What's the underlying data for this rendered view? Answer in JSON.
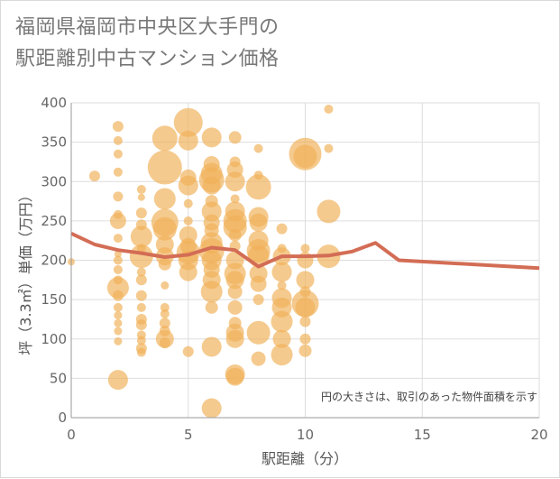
{
  "chart_data": {
    "type": "scatter",
    "title_line1": "福岡県福岡市中央区大手門の",
    "title_line2": "駅距離別中古マンション価格",
    "xlabel": "駅距離（分）",
    "ylabel": "坪（3.3㎡）単価（万円）",
    "note": "円の大きさは、取引のあった物件面積を示す",
    "xlim": [
      0,
      20
    ],
    "ylim": [
      0,
      400
    ],
    "xticks": [
      "0",
      "5",
      "10",
      "15",
      "20"
    ],
    "yticks": [
      "0",
      "50",
      "100",
      "150",
      "200",
      "250",
      "300",
      "350",
      "400"
    ],
    "grid": true,
    "colors": {
      "bubble": "#f0b158",
      "line": "#d36d55",
      "grid": "#dddddd",
      "axis": "#999999"
    },
    "points": [
      {
        "x": 0,
        "y": 198,
        "s": 8
      },
      {
        "x": 1,
        "y": 307,
        "s": 12
      },
      {
        "x": 2,
        "y": 370,
        "s": 12
      },
      {
        "x": 2,
        "y": 352,
        "s": 10
      },
      {
        "x": 2,
        "y": 335,
        "s": 10
      },
      {
        "x": 2,
        "y": 312,
        "s": 10
      },
      {
        "x": 2,
        "y": 281,
        "s": 11
      },
      {
        "x": 2,
        "y": 258,
        "s": 10
      },
      {
        "x": 2,
        "y": 250,
        "s": 18
      },
      {
        "x": 2,
        "y": 228,
        "s": 10
      },
      {
        "x": 2,
        "y": 208,
        "s": 8
      },
      {
        "x": 2,
        "y": 200,
        "s": 10
      },
      {
        "x": 2,
        "y": 188,
        "s": 10
      },
      {
        "x": 2,
        "y": 175,
        "s": 10
      },
      {
        "x": 2,
        "y": 165,
        "s": 24
      },
      {
        "x": 2,
        "y": 155,
        "s": 12
      },
      {
        "x": 2,
        "y": 140,
        "s": 10
      },
      {
        "x": 2,
        "y": 130,
        "s": 9
      },
      {
        "x": 2,
        "y": 120,
        "s": 9
      },
      {
        "x": 2,
        "y": 110,
        "s": 9
      },
      {
        "x": 2,
        "y": 97,
        "s": 9
      },
      {
        "x": 2,
        "y": 48,
        "s": 22
      },
      {
        "x": 3,
        "y": 290,
        "s": 10
      },
      {
        "x": 3,
        "y": 280,
        "s": 8
      },
      {
        "x": 3,
        "y": 260,
        "s": 12
      },
      {
        "x": 3,
        "y": 245,
        "s": 12
      },
      {
        "x": 3,
        "y": 230,
        "s": 24
      },
      {
        "x": 3,
        "y": 215,
        "s": 10
      },
      {
        "x": 3,
        "y": 205,
        "s": 26
      },
      {
        "x": 3,
        "y": 185,
        "s": 10
      },
      {
        "x": 3,
        "y": 175,
        "s": 12
      },
      {
        "x": 3,
        "y": 155,
        "s": 12
      },
      {
        "x": 3,
        "y": 140,
        "s": 10
      },
      {
        "x": 3,
        "y": 125,
        "s": 12
      },
      {
        "x": 3,
        "y": 118,
        "s": 12
      },
      {
        "x": 3,
        "y": 105,
        "s": 10
      },
      {
        "x": 3,
        "y": 98,
        "s": 10
      },
      {
        "x": 3,
        "y": 88,
        "s": 12
      },
      {
        "x": 3,
        "y": 83,
        "s": 10
      },
      {
        "x": 4,
        "y": 355,
        "s": 28
      },
      {
        "x": 4,
        "y": 318,
        "s": 38
      },
      {
        "x": 4,
        "y": 278,
        "s": 24
      },
      {
        "x": 4,
        "y": 248,
        "s": 30
      },
      {
        "x": 4,
        "y": 240,
        "s": 26
      },
      {
        "x": 4,
        "y": 220,
        "s": 20
      },
      {
        "x": 4,
        "y": 205,
        "s": 20
      },
      {
        "x": 4,
        "y": 195,
        "s": 14
      },
      {
        "x": 4,
        "y": 168,
        "s": 9
      },
      {
        "x": 4,
        "y": 140,
        "s": 10
      },
      {
        "x": 4,
        "y": 132,
        "s": 10
      },
      {
        "x": 4,
        "y": 120,
        "s": 12
      },
      {
        "x": 4,
        "y": 110,
        "s": 12
      },
      {
        "x": 4,
        "y": 100,
        "s": 20
      },
      {
        "x": 4,
        "y": 95,
        "s": 12
      },
      {
        "x": 5,
        "y": 375,
        "s": 32
      },
      {
        "x": 5,
        "y": 352,
        "s": 22
      },
      {
        "x": 5,
        "y": 305,
        "s": 18
      },
      {
        "x": 5,
        "y": 295,
        "s": 22
      },
      {
        "x": 5,
        "y": 272,
        "s": 10
      },
      {
        "x": 5,
        "y": 250,
        "s": 10
      },
      {
        "x": 5,
        "y": 232,
        "s": 20
      },
      {
        "x": 5,
        "y": 218,
        "s": 18
      },
      {
        "x": 5,
        "y": 210,
        "s": 26
      },
      {
        "x": 5,
        "y": 200,
        "s": 22
      },
      {
        "x": 5,
        "y": 185,
        "s": 20
      },
      {
        "x": 5,
        "y": 84,
        "s": 12
      },
      {
        "x": 6,
        "y": 356,
        "s": 22
      },
      {
        "x": 6,
        "y": 322,
        "s": 18
      },
      {
        "x": 6,
        "y": 310,
        "s": 24
      },
      {
        "x": 6,
        "y": 302,
        "s": 28
      },
      {
        "x": 6,
        "y": 295,
        "s": 20
      },
      {
        "x": 6,
        "y": 275,
        "s": 14
      },
      {
        "x": 6,
        "y": 262,
        "s": 22
      },
      {
        "x": 6,
        "y": 248,
        "s": 18
      },
      {
        "x": 6,
        "y": 238,
        "s": 16
      },
      {
        "x": 6,
        "y": 222,
        "s": 24
      },
      {
        "x": 6,
        "y": 212,
        "s": 28
      },
      {
        "x": 6,
        "y": 200,
        "s": 22
      },
      {
        "x": 6,
        "y": 188,
        "s": 18
      },
      {
        "x": 6,
        "y": 175,
        "s": 20
      },
      {
        "x": 6,
        "y": 160,
        "s": 24
      },
      {
        "x": 6,
        "y": 140,
        "s": 14
      },
      {
        "x": 6,
        "y": 90,
        "s": 22
      },
      {
        "x": 6,
        "y": 12,
        "s": 22
      },
      {
        "x": 7,
        "y": 356,
        "s": 14
      },
      {
        "x": 7,
        "y": 325,
        "s": 12
      },
      {
        "x": 7,
        "y": 315,
        "s": 18
      },
      {
        "x": 7,
        "y": 300,
        "s": 22
      },
      {
        "x": 7,
        "y": 278,
        "s": 10
      },
      {
        "x": 7,
        "y": 262,
        "s": 22
      },
      {
        "x": 7,
        "y": 250,
        "s": 26
      },
      {
        "x": 7,
        "y": 242,
        "s": 26
      },
      {
        "x": 7,
        "y": 232,
        "s": 14
      },
      {
        "x": 7,
        "y": 218,
        "s": 12
      },
      {
        "x": 7,
        "y": 200,
        "s": 20
      },
      {
        "x": 7,
        "y": 183,
        "s": 24
      },
      {
        "x": 7,
        "y": 175,
        "s": 20
      },
      {
        "x": 7,
        "y": 160,
        "s": 16
      },
      {
        "x": 7,
        "y": 140,
        "s": 16
      },
      {
        "x": 7,
        "y": 120,
        "s": 14
      },
      {
        "x": 7,
        "y": 108,
        "s": 20
      },
      {
        "x": 7,
        "y": 100,
        "s": 20
      },
      {
        "x": 7,
        "y": 55,
        "s": 22
      },
      {
        "x": 7,
        "y": 52,
        "s": 20
      },
      {
        "x": 8,
        "y": 342,
        "s": 10
      },
      {
        "x": 8,
        "y": 308,
        "s": 10
      },
      {
        "x": 8,
        "y": 293,
        "s": 28
      },
      {
        "x": 8,
        "y": 255,
        "s": 22
      },
      {
        "x": 8,
        "y": 248,
        "s": 20
      },
      {
        "x": 8,
        "y": 225,
        "s": 22
      },
      {
        "x": 8,
        "y": 212,
        "s": 26
      },
      {
        "x": 8,
        "y": 205,
        "s": 24
      },
      {
        "x": 8,
        "y": 183,
        "s": 20
      },
      {
        "x": 8,
        "y": 170,
        "s": 18
      },
      {
        "x": 8,
        "y": 150,
        "s": 12
      },
      {
        "x": 8,
        "y": 108,
        "s": 26
      },
      {
        "x": 8,
        "y": 75,
        "s": 16
      },
      {
        "x": 9,
        "y": 240,
        "s": 12
      },
      {
        "x": 9,
        "y": 215,
        "s": 10
      },
      {
        "x": 9,
        "y": 205,
        "s": 20
      },
      {
        "x": 9,
        "y": 185,
        "s": 22
      },
      {
        "x": 9,
        "y": 168,
        "s": 10
      },
      {
        "x": 9,
        "y": 152,
        "s": 22
      },
      {
        "x": 9,
        "y": 140,
        "s": 22
      },
      {
        "x": 9,
        "y": 122,
        "s": 24
      },
      {
        "x": 9,
        "y": 100,
        "s": 20
      },
      {
        "x": 9,
        "y": 80,
        "s": 24
      },
      {
        "x": 10,
        "y": 335,
        "s": 36
      },
      {
        "x": 10,
        "y": 332,
        "s": 26
      },
      {
        "x": 10,
        "y": 215,
        "s": 10
      },
      {
        "x": 10,
        "y": 200,
        "s": 18
      },
      {
        "x": 10,
        "y": 175,
        "s": 20
      },
      {
        "x": 10,
        "y": 160,
        "s": 12
      },
      {
        "x": 10,
        "y": 145,
        "s": 30
      },
      {
        "x": 10,
        "y": 140,
        "s": 22
      },
      {
        "x": 10,
        "y": 122,
        "s": 12
      },
      {
        "x": 10,
        "y": 100,
        "s": 12
      },
      {
        "x": 10,
        "y": 85,
        "s": 14
      },
      {
        "x": 11,
        "y": 392,
        "s": 10
      },
      {
        "x": 11,
        "y": 342,
        "s": 10
      },
      {
        "x": 11,
        "y": 262,
        "s": 26
      },
      {
        "x": 11,
        "y": 205,
        "s": 26
      }
    ],
    "trend": {
      "x": [
        0,
        1,
        2,
        3,
        4,
        5,
        6,
        7,
        8,
        9,
        10,
        11,
        12,
        13,
        14,
        20
      ],
      "y": [
        234,
        220,
        213,
        209,
        204,
        207,
        216,
        213,
        192,
        205,
        205,
        206,
        211,
        222,
        200,
        190
      ]
    }
  }
}
